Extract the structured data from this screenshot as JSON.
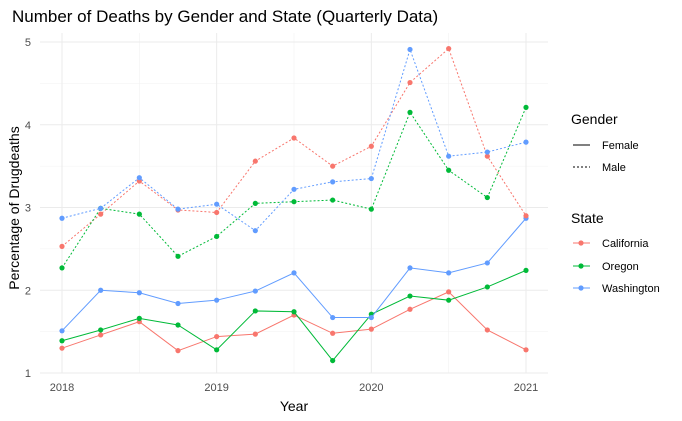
{
  "chart_data": {
    "type": "line",
    "title": "Number of Deaths by Gender and State (Quarterly Data)",
    "xlabel": "Year",
    "ylabel": "Percentage of Drugdeaths",
    "xlim": [
      2018,
      2021
    ],
    "ylim": [
      1,
      5
    ],
    "x_ticks": [
      "2018",
      "2019",
      "2020",
      "2021"
    ],
    "y_ticks": [
      "1",
      "2",
      "3",
      "4",
      "5"
    ],
    "x": [
      2018.0,
      2018.25,
      2018.5,
      2018.75,
      2019.0,
      2019.25,
      2019.5,
      2019.75,
      2020.0,
      2020.25,
      2020.5,
      2020.75,
      2021.0
    ],
    "grid": true,
    "legend_position": "right",
    "legend": {
      "gender_title": "Gender",
      "gender_items": [
        {
          "label": "Female",
          "line": "solid"
        },
        {
          "label": "Male",
          "line": "dotted"
        }
      ],
      "state_title": "State",
      "state_items": [
        {
          "label": "California",
          "color": "#F8766D"
        },
        {
          "label": "Oregon",
          "color": "#00BA38"
        },
        {
          "label": "Washington",
          "color": "#619CFF"
        }
      ]
    },
    "series": [
      {
        "state": "California",
        "gender": "Female",
        "color": "#F8766D",
        "line": "solid",
        "values": [
          1.3,
          1.46,
          1.62,
          1.27,
          1.44,
          1.47,
          1.7,
          1.48,
          1.53,
          1.77,
          1.98,
          1.52,
          1.28
        ]
      },
      {
        "state": "Oregon",
        "gender": "Female",
        "color": "#00BA38",
        "line": "solid",
        "values": [
          1.39,
          1.52,
          1.66,
          1.58,
          1.28,
          1.75,
          1.74,
          1.15,
          1.71,
          1.93,
          1.88,
          2.04,
          2.24
        ]
      },
      {
        "state": "Washington",
        "gender": "Female",
        "color": "#619CFF",
        "line": "solid",
        "values": [
          1.51,
          2.0,
          1.97,
          1.84,
          1.88,
          1.99,
          2.21,
          1.67,
          1.67,
          2.27,
          2.21,
          2.33,
          2.87
        ]
      },
      {
        "state": "California",
        "gender": "Male",
        "color": "#F8766D",
        "line": "dotted",
        "values": [
          2.53,
          2.92,
          3.32,
          2.97,
          2.94,
          3.56,
          3.84,
          3.5,
          3.74,
          4.51,
          4.92,
          3.62,
          2.9
        ]
      },
      {
        "state": "Oregon",
        "gender": "Male",
        "color": "#00BA38",
        "line": "dotted",
        "values": [
          2.27,
          2.99,
          2.92,
          2.41,
          2.65,
          3.05,
          3.07,
          3.09,
          2.98,
          4.15,
          3.45,
          3.12,
          4.21
        ]
      },
      {
        "state": "Washington",
        "gender": "Male",
        "color": "#619CFF",
        "line": "dotted",
        "values": [
          2.87,
          2.99,
          3.36,
          2.98,
          3.04,
          2.72,
          3.22,
          3.31,
          3.35,
          4.91,
          3.62,
          3.67,
          3.79
        ]
      }
    ]
  }
}
